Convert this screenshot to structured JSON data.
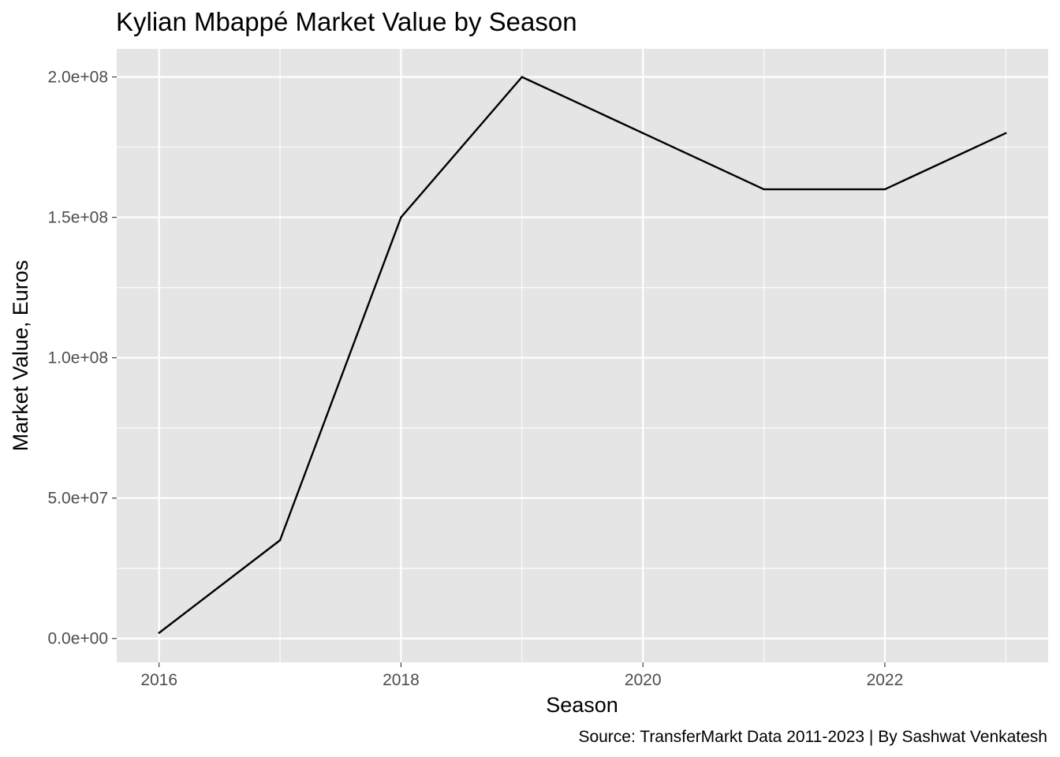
{
  "chart_data": {
    "type": "line",
    "title": "Kylian Mbappé Market Value by Season",
    "xlabel": "Season",
    "ylabel": "Market Value, Euros",
    "caption": "Source: TransferMarkt Data 2011-2023 | By Sashwat Venkatesh",
    "x": [
      2016,
      2017,
      2018,
      2019,
      2020,
      2021,
      2022,
      2023
    ],
    "series": [
      {
        "values": [
          2000000,
          35000000,
          150000000,
          200000000,
          180000000,
          160000000,
          160000000,
          180000000
        ]
      }
    ],
    "xlim": [
      2015.65,
      2023.35
    ],
    "ylim": [
      -8500000,
      210000000
    ],
    "x_ticks": [
      2016,
      2018,
      2020,
      2022
    ],
    "x_tick_labels": [
      "2016",
      "2018",
      "2020",
      "2022"
    ],
    "x_minor_ticks": [
      2017,
      2019,
      2021,
      2023
    ],
    "y_ticks": [
      0,
      50000000,
      100000000,
      150000000,
      200000000
    ],
    "y_tick_labels": [
      "0.0e+00",
      "5.0e+07",
      "1.0e+08",
      "1.5e+08",
      "2.0e+08"
    ],
    "y_minor_ticks": [
      25000000,
      75000000,
      125000000,
      175000000
    ],
    "grid": true,
    "legend": "none",
    "colors": {
      "panel": "#e5e5e5",
      "grid": "#ffffff",
      "line": "#000000",
      "tick_text": "#4d4d4d"
    }
  }
}
